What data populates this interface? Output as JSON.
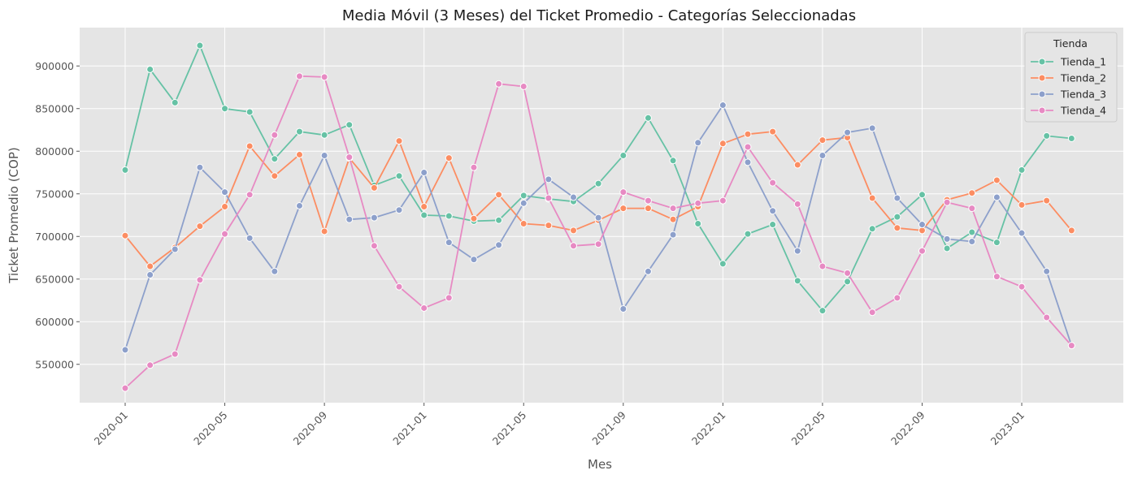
{
  "chart_data": {
    "type": "line",
    "title": "Media Móvil (3 Meses) del Ticket Promedio - Categorías Seleccionadas",
    "xlabel": "Mes",
    "ylabel": "Ticket Promedio (COP)",
    "grid": true,
    "legend_title": "Tienda",
    "legend_position": "top-right",
    "x": [
      "2020-01",
      "2020-02",
      "2020-03",
      "2020-04",
      "2020-05",
      "2020-06",
      "2020-07",
      "2020-08",
      "2020-09",
      "2020-10",
      "2020-11",
      "2020-12",
      "2021-01",
      "2021-02",
      "2021-03",
      "2021-04",
      "2021-05",
      "2021-06",
      "2021-07",
      "2021-08",
      "2021-09",
      "2021-10",
      "2021-11",
      "2021-12",
      "2022-01",
      "2022-02",
      "2022-03",
      "2022-04",
      "2022-05",
      "2022-06",
      "2022-07",
      "2022-08",
      "2022-09",
      "2022-10",
      "2022-11",
      "2022-12",
      "2023-01",
      "2023-02",
      "2023-03"
    ],
    "x_ticks": [
      "2020-01",
      "2020-05",
      "2020-09",
      "2021-01",
      "2021-05",
      "2021-09",
      "2022-01",
      "2022-05",
      "2022-09",
      "2023-01"
    ],
    "y_ticks": [
      550000,
      600000,
      650000,
      700000,
      750000,
      800000,
      850000,
      900000
    ],
    "ylim": [
      505000,
      945000
    ],
    "series": [
      {
        "name": "Tienda_1",
        "color": "#66c2a5",
        "values": [
          778000,
          896000,
          857000,
          924000,
          850000,
          846000,
          791000,
          823000,
          819000,
          831000,
          760000,
          771000,
          725000,
          724000,
          718000,
          719000,
          748000,
          744000,
          741000,
          762000,
          795000,
          839000,
          789000,
          715000,
          668000,
          703000,
          714000,
          648000,
          613000,
          647000,
          709000,
          723000,
          749000,
          686000,
          705000,
          693000,
          778000,
          818000,
          815000
        ]
      },
      {
        "name": "Tienda_2",
        "color": "#fc8d62",
        "values": [
          701000,
          665000,
          687000,
          712000,
          735000,
          806000,
          771000,
          796000,
          706000,
          792000,
          757000,
          812000,
          735000,
          792000,
          721000,
          749000,
          715000,
          713000,
          707000,
          719000,
          733000,
          733000,
          720000,
          735000,
          809000,
          820000,
          823000,
          784000,
          813000,
          816000,
          745000,
          710000,
          707000,
          743000,
          751000,
          766000,
          737000,
          742000,
          707000
        ]
      },
      {
        "name": "Tienda_3",
        "color": "#8da0cb",
        "values": [
          567000,
          655000,
          685000,
          781000,
          752000,
          698000,
          659000,
          736000,
          795000,
          720000,
          722000,
          731000,
          775000,
          693000,
          673000,
          690000,
          739000,
          767000,
          746000,
          722000,
          615000,
          659000,
          702000,
          810000,
          854000,
          787000,
          730000,
          683000,
          795000,
          822000,
          827000,
          745000,
          714000,
          697000,
          694000,
          746000,
          704000,
          659000,
          572000
        ]
      },
      {
        "name": "Tienda_4",
        "color": "#e78ac3",
        "values": [
          522000,
          549000,
          562000,
          649000,
          703000,
          749000,
          819000,
          888000,
          887000,
          793000,
          689000,
          641000,
          616000,
          628000,
          781000,
          879000,
          876000,
          745000,
          689000,
          691000,
          752000,
          742000,
          733000,
          739000,
          742000,
          805000,
          763000,
          738000,
          665000,
          657000,
          611000,
          628000,
          683000,
          740000,
          733000,
          653000,
          641000,
          605000,
          572000
        ]
      }
    ]
  }
}
